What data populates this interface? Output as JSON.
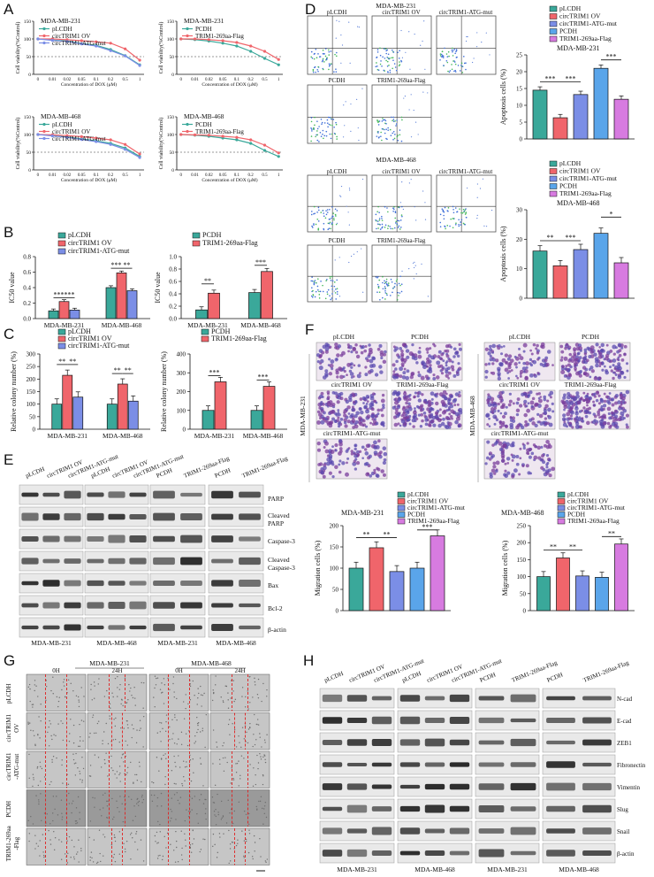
{
  "panels": {
    "A": {
      "letter": "A",
      "xticks": [
        "0",
        "0.01",
        "0.02",
        "0.05",
        "0.1",
        "0.2",
        "0.5",
        "1"
      ],
      "xlabel": "Concentration of DOX (μM)",
      "ylabel": "Cell viability(%Control)",
      "yticks": [
        "0",
        "50",
        "100",
        "150"
      ],
      "charts": [
        {
          "title": "MDA-MB-231",
          "legend": [
            "pLCDH",
            "circTRIM1 OV",
            "circTRIM1-ATG-mut"
          ],
          "colors": [
            "#3aa89a",
            "#f0656b",
            "#7b8ee6"
          ],
          "series": [
            [
              100,
              97,
              94,
              87,
              82,
              70,
              53,
              27
            ],
            [
              100,
              100,
              98,
              95,
              92,
              88,
              72,
              40
            ],
            [
              100,
              96,
              93,
              86,
              80,
              67,
              52,
              25
            ]
          ]
        },
        {
          "title": "MDA-MB-231",
          "legend": [
            "PCDH",
            "TRIM1-269aa-Flag"
          ],
          "colors": [
            "#3aa89a",
            "#f0656b"
          ],
          "series": [
            [
              100,
              98,
              94,
              88,
              80,
              65,
              45,
              27
            ],
            [
              100,
              100,
              98,
              95,
              90,
              80,
              65,
              42
            ]
          ]
        },
        {
          "title": "MDA-MB-468",
          "legend": [
            "pLCDH",
            "circTRIM1 OV",
            "circTRIM1-ATG-mut"
          ],
          "colors": [
            "#3aa89a",
            "#f0656b",
            "#7b8ee6"
          ],
          "series": [
            [
              100,
              97,
              93,
              88,
              82,
              75,
              62,
              38
            ],
            [
              100,
              99,
              97,
              94,
              90,
              85,
              72,
              45
            ],
            [
              100,
              96,
              92,
              86,
              80,
              72,
              58,
              35
            ]
          ]
        },
        {
          "title": "MDA-MB-468",
          "legend": [
            "PCDH",
            "TRIM1-269aa-Flag"
          ],
          "colors": [
            "#3aa89a",
            "#f0656b"
          ],
          "series": [
            [
              100,
              98,
              95,
              90,
              85,
              75,
              55,
              38
            ],
            [
              100,
              99,
              98,
              95,
              92,
              85,
              70,
              48
            ]
          ]
        }
      ]
    },
    "B": {
      "letter": "B",
      "ylabel": "IC50 value",
      "left": {
        "legend": [
          "pLCDH",
          "circTRIM1 OV",
          "circTRIM1-ATG-mut"
        ],
        "categories": [
          "MDA-MB-231",
          "MDA-MB-468"
        ],
        "yticks": [
          "0.0",
          "0.2",
          "0.4",
          "0.6",
          "0.8"
        ],
        "ylim": [
          0,
          0.8
        ],
        "series": [
          [
            0.1,
            0.4
          ],
          [
            0.22,
            0.59
          ],
          [
            0.11,
            0.36
          ]
        ],
        "sig": [
          "***",
          "***",
          "***",
          "**"
        ]
      },
      "right": {
        "legend": [
          "PCDH",
          "TRIM1-269aa-Flag"
        ],
        "categories": [
          "MDA-MB-231",
          "MDA-MB-468"
        ],
        "yticks": [
          "0.0",
          "0.2",
          "0.4",
          "0.6",
          "0.8",
          "1.0"
        ],
        "ylim": [
          0,
          1.0
        ],
        "series": [
          [
            0.14,
            0.42
          ],
          [
            0.41,
            0.76
          ]
        ],
        "sig": [
          "**",
          "***"
        ]
      }
    },
    "C": {
      "letter": "C",
      "ylabel": "Relative colony number (%)",
      "left": {
        "legend": [
          "pLCDH",
          "circTRIM1 OV",
          "circTRIM1-ATG-mut"
        ],
        "categories": [
          "MDA-MB-231",
          "MDA-MB-468"
        ],
        "yticks": [
          "0",
          "50",
          "100",
          "150",
          "200",
          "250",
          "300"
        ],
        "ylim": [
          0,
          300
        ],
        "series": [
          [
            100,
            100
          ],
          [
            215,
            180
          ],
          [
            128,
            112
          ]
        ],
        "sig": [
          "**",
          "**",
          "**",
          "**"
        ]
      },
      "right": {
        "legend": [
          "PCDH",
          "TRIM1-269aa-Flag"
        ],
        "categories": [
          "MDA-MB-231",
          "MDA-MB-468"
        ],
        "yticks": [
          "0",
          "100",
          "200",
          "300",
          "400"
        ],
        "ylim": [
          0,
          400
        ],
        "series": [
          [
            100,
            100
          ],
          [
            252,
            228
          ]
        ],
        "sig": [
          "***",
          "***"
        ]
      }
    },
    "D": {
      "letter": "D",
      "flow231_title": "MDA-MB-231",
      "flow468_title": "MDA-MB-468",
      "flow_labels_row1": [
        "pLCDH",
        "circTRIM1 OV",
        "circTRIM1-ATG-mut"
      ],
      "flow_labels_row2": [
        "PCDH",
        "TRIM1-269aa-Flag"
      ],
      "legend": [
        "pLCDH",
        "circTRIM1 OV",
        "circTRIM1-ATG-mut",
        "PCDH",
        "TRIM1-269aa-Flag"
      ],
      "colors": [
        "#3aa89a",
        "#f0656b",
        "#7b8ee6",
        "#5aa5ea",
        "#d77be0"
      ],
      "ylabel": "Apoptosis cells (%)",
      "chart231": {
        "title": "MDA-MB-231",
        "yticks": [
          "0",
          "5",
          "10",
          "15",
          "20",
          "25"
        ],
        "ylim": [
          0,
          25
        ],
        "values": [
          14.5,
          6.3,
          13.2,
          21,
          11.8
        ],
        "sig": [
          "***",
          "***",
          "***"
        ]
      },
      "chart468": {
        "title": "MDA-MB-468",
        "yticks": [
          "0",
          "10",
          "20",
          "30"
        ],
        "ylim": [
          0,
          30
        ],
        "values": [
          16,
          11,
          16.5,
          22,
          12
        ],
        "sig": [
          "**",
          "***",
          "*"
        ]
      }
    },
    "E": {
      "letter": "E",
      "lane_labels": [
        [
          "pLCDH",
          "circTRIM1 OV",
          "circTRIM1-ATG-mut"
        ],
        [
          "pLCDH",
          "circTRIM1 OV",
          "circTRIM1-ATG-mut"
        ],
        [
          "PCDH",
          "TRIM1-269aa-Flag"
        ],
        [
          "PCDH",
          "TRIM1-269aa-Flag"
        ]
      ],
      "proteins": [
        "PARP",
        "Cleaved PARP",
        "Caspase-3",
        "Cleaved Caspase-3",
        "Bax",
        "Bcl-2",
        "β-actin"
      ],
      "cells": [
        "MDA-MB-231",
        "MDA-MB-468",
        "MDA-MB-231",
        "MDA-MB-468"
      ]
    },
    "F": {
      "letter": "F",
      "left_labels": [
        "pLCDH",
        "PCDH",
        "circTRIM1 OV",
        "TRIM1-269aa-Flag",
        "circTRIM1-ATG-mut"
      ],
      "right_labels": [
        "pLCDH",
        "PCDH",
        "circTRIM1 OV",
        "TRIM1-269aa-Flag",
        "circTRIM1-ATG-mut"
      ],
      "side_left": "MDA-MB-231",
      "side_right": "MDA-MB-468",
      "legend": [
        "pLCDH",
        "circTRIM1 OV",
        "circTRIM1-ATG-mut",
        "PCDH",
        "TRIM1-269aa-Flag"
      ],
      "colors": [
        "#3aa89a",
        "#f0656b",
        "#7b8ee6",
        "#5aa5ea",
        "#d77be0"
      ],
      "ylabel": "Migration cells (%)",
      "chart231": {
        "title": "MDA-MB-231",
        "yticks": [
          "0",
          "50",
          "100",
          "150",
          "200"
        ],
        "ylim": [
          0,
          200
        ],
        "values": [
          100,
          148,
          92,
          100,
          176
        ],
        "sig": [
          "**",
          "**",
          "***"
        ]
      },
      "chart468": {
        "title": "MDA-MB-468",
        "yticks": [
          "0",
          "50",
          "100",
          "150",
          "200",
          "250"
        ],
        "ylim": [
          0,
          250
        ],
        "values": [
          100,
          155,
          102,
          98,
          196
        ],
        "sig": [
          "**",
          "**",
          "**"
        ]
      }
    },
    "G": {
      "letter": "G",
      "col_groups": [
        "MDA-MB-231",
        "MDA-MB-468"
      ],
      "times": [
        "0H",
        "24H",
        "0H",
        "24H"
      ],
      "row_labels": [
        "pLCDH",
        "circTRIM1 OV",
        "circTRIM1 -ATG-mut",
        "PCDH",
        "TRIM1-269aa -Flag"
      ]
    },
    "H": {
      "letter": "H",
      "lane_labels": [
        [
          "pLCDH",
          "circTRIM1 OV",
          "circTRIM1-ATG-mut"
        ],
        [
          "pLCDH",
          "circTRIM1 OV",
          "circTRIM1-ATG-mut"
        ],
        [
          "PCDH",
          "TRIM1-269aa-Flag"
        ],
        [
          "PCDH",
          "TRIM1-269aa-Flag"
        ]
      ],
      "proteins": [
        "N-cad",
        "E-cad",
        "ZEB1",
        "Fibronectin",
        "Vimentin",
        "Slug",
        "Snail",
        "β-actin"
      ],
      "cells": [
        "MDA-MB-231",
        "MDA-MB-468",
        "MDA-MB-231",
        "MDA-MB-468"
      ]
    }
  }
}
